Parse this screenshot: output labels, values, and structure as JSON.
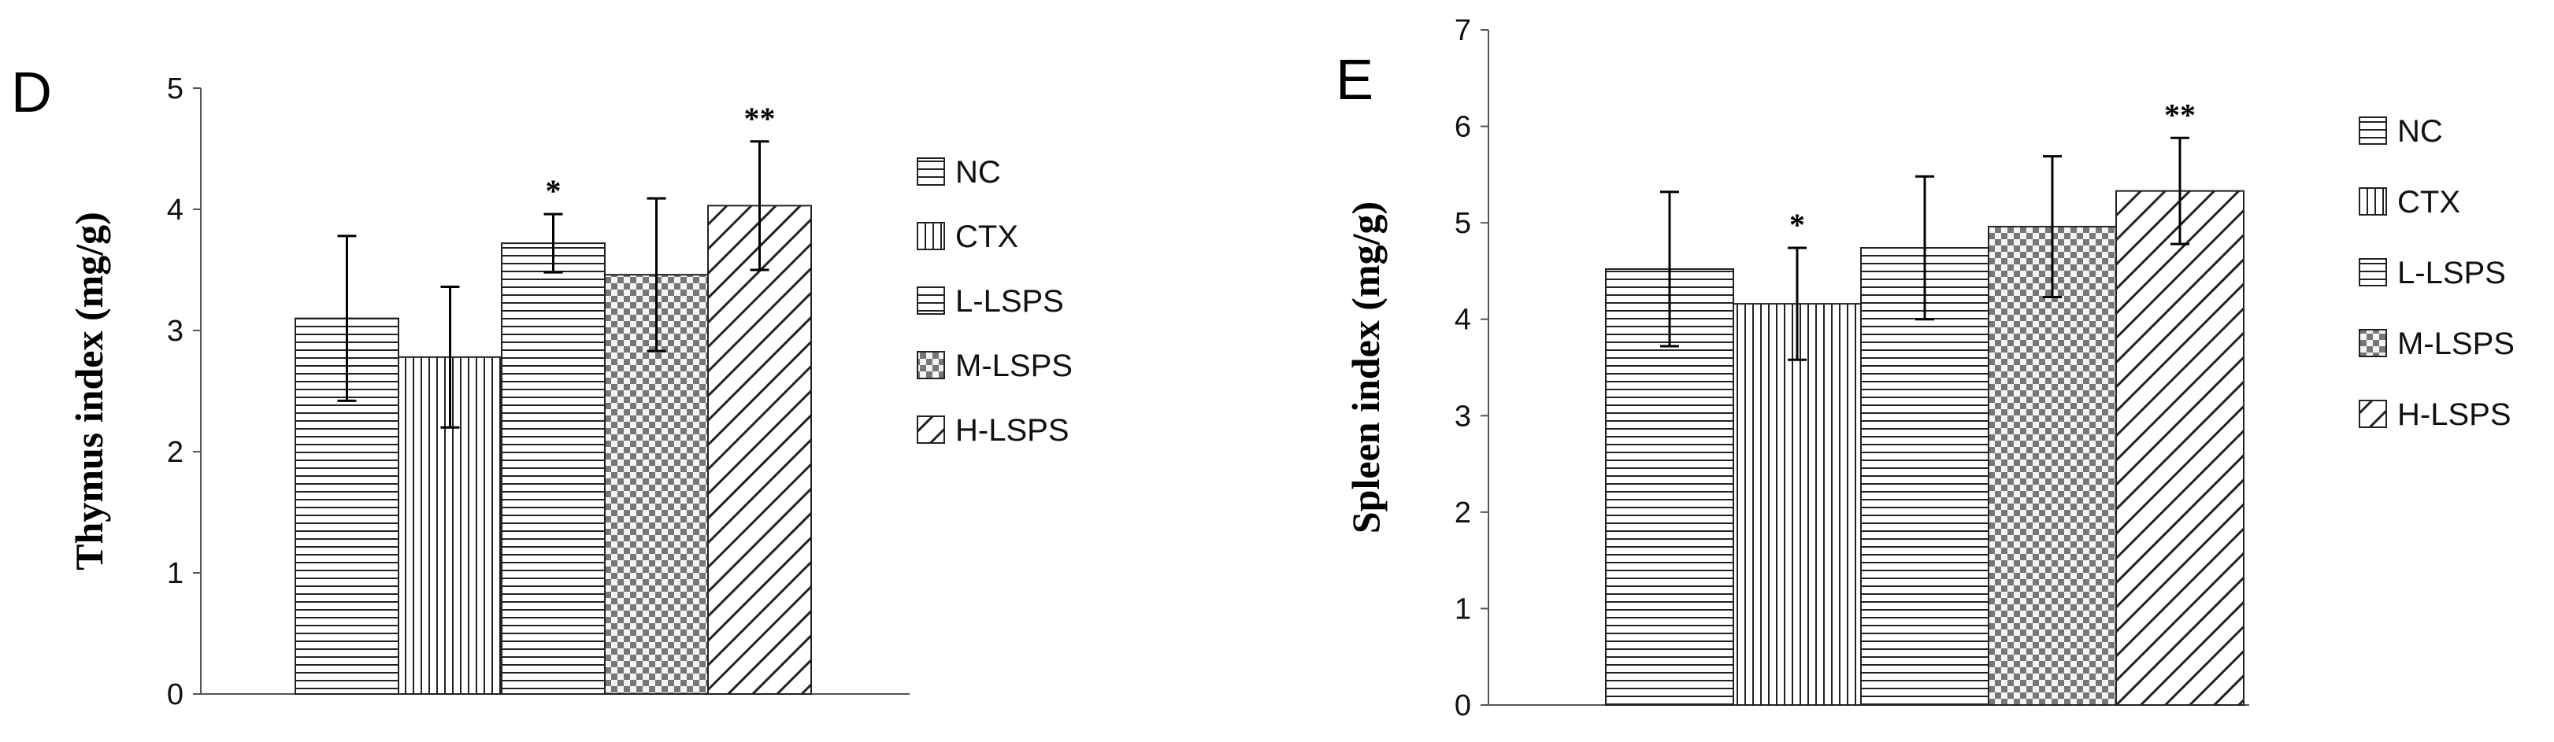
{
  "series_names": [
    "NC",
    "CTX",
    "L-LSPS",
    "M-LSPS",
    "H-LSPS"
  ],
  "patterns": [
    "hlines",
    "vlines",
    "hlines",
    "checker",
    "diag"
  ],
  "chart_data": [
    {
      "type": "bar",
      "panel_label": "D",
      "ylabel": "Thymus index (mg/g)",
      "ylim": [
        0,
        5
      ],
      "yticks": [
        "0",
        "1",
        "2",
        "3",
        "4",
        "5"
      ],
      "categories": [
        "NC",
        "CTX",
        "L-LSPS",
        "M-LSPS",
        "H-LSPS"
      ],
      "values": [
        3.1,
        2.78,
        3.72,
        3.46,
        4.03
      ],
      "errors": [
        0.68,
        0.58,
        0.24,
        0.63,
        0.53
      ],
      "significance": [
        "",
        "",
        "*",
        "",
        "**"
      ],
      "legend": [
        "NC",
        "CTX",
        "L-LSPS",
        "M-LSPS",
        "H-LSPS"
      ],
      "legend_position": "right",
      "grid": false
    },
    {
      "type": "bar",
      "panel_label": "E",
      "ylabel": "Spleen index (mg/g)",
      "ylim": [
        0,
        7
      ],
      "yticks": [
        "0",
        "1",
        "2",
        "3",
        "4",
        "5",
        "6",
        "7"
      ],
      "categories": [
        "NC",
        "CTX",
        "L-LSPS",
        "M-LSPS",
        "H-LSPS"
      ],
      "values": [
        4.52,
        4.16,
        4.74,
        4.96,
        5.33
      ],
      "errors": [
        0.8,
        0.58,
        0.74,
        0.73,
        0.55
      ],
      "significance": [
        "",
        "*",
        "",
        "",
        "**"
      ],
      "legend": [
        "NC",
        "CTX",
        "L-LSPS",
        "M-LSPS",
        "H-LSPS"
      ],
      "legend_position": "right",
      "grid": false
    }
  ]
}
